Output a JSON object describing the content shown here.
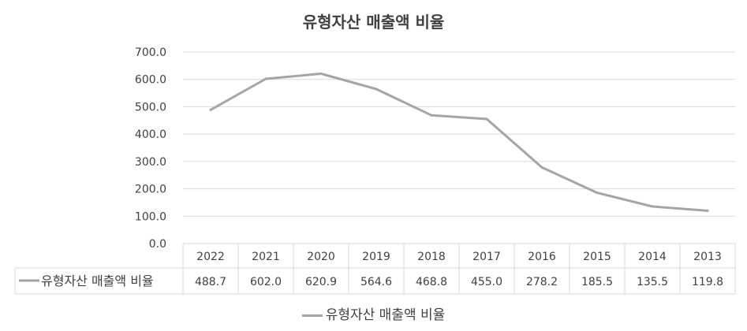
{
  "chart_data": {
    "type": "line",
    "title": "유형자산 매출액 비율",
    "categories": [
      "2022",
      "2021",
      "2020",
      "2019",
      "2018",
      "2017",
      "2016",
      "2015",
      "2014",
      "2013"
    ],
    "series": [
      {
        "name": "유형자산 매출액 비율",
        "values": [
          488.7,
          602.0,
          620.9,
          564.6,
          468.8,
          455.0,
          278.2,
          185.5,
          135.5,
          119.8
        ],
        "value_labels": [
          "488.7",
          "602.0",
          "620.9",
          "564.6",
          "468.8",
          "455.0",
          "278.2",
          "185.5",
          "135.5",
          "119.8"
        ],
        "color": "#A5A5A5"
      }
    ],
    "ylim": [
      0,
      700
    ],
    "yticks": [
      "0.0",
      "100.0",
      "200.0",
      "300.0",
      "400.0",
      "500.0",
      "600.0",
      "700.0"
    ],
    "grid": true,
    "data_table": true,
    "legend_position": "bottom"
  }
}
